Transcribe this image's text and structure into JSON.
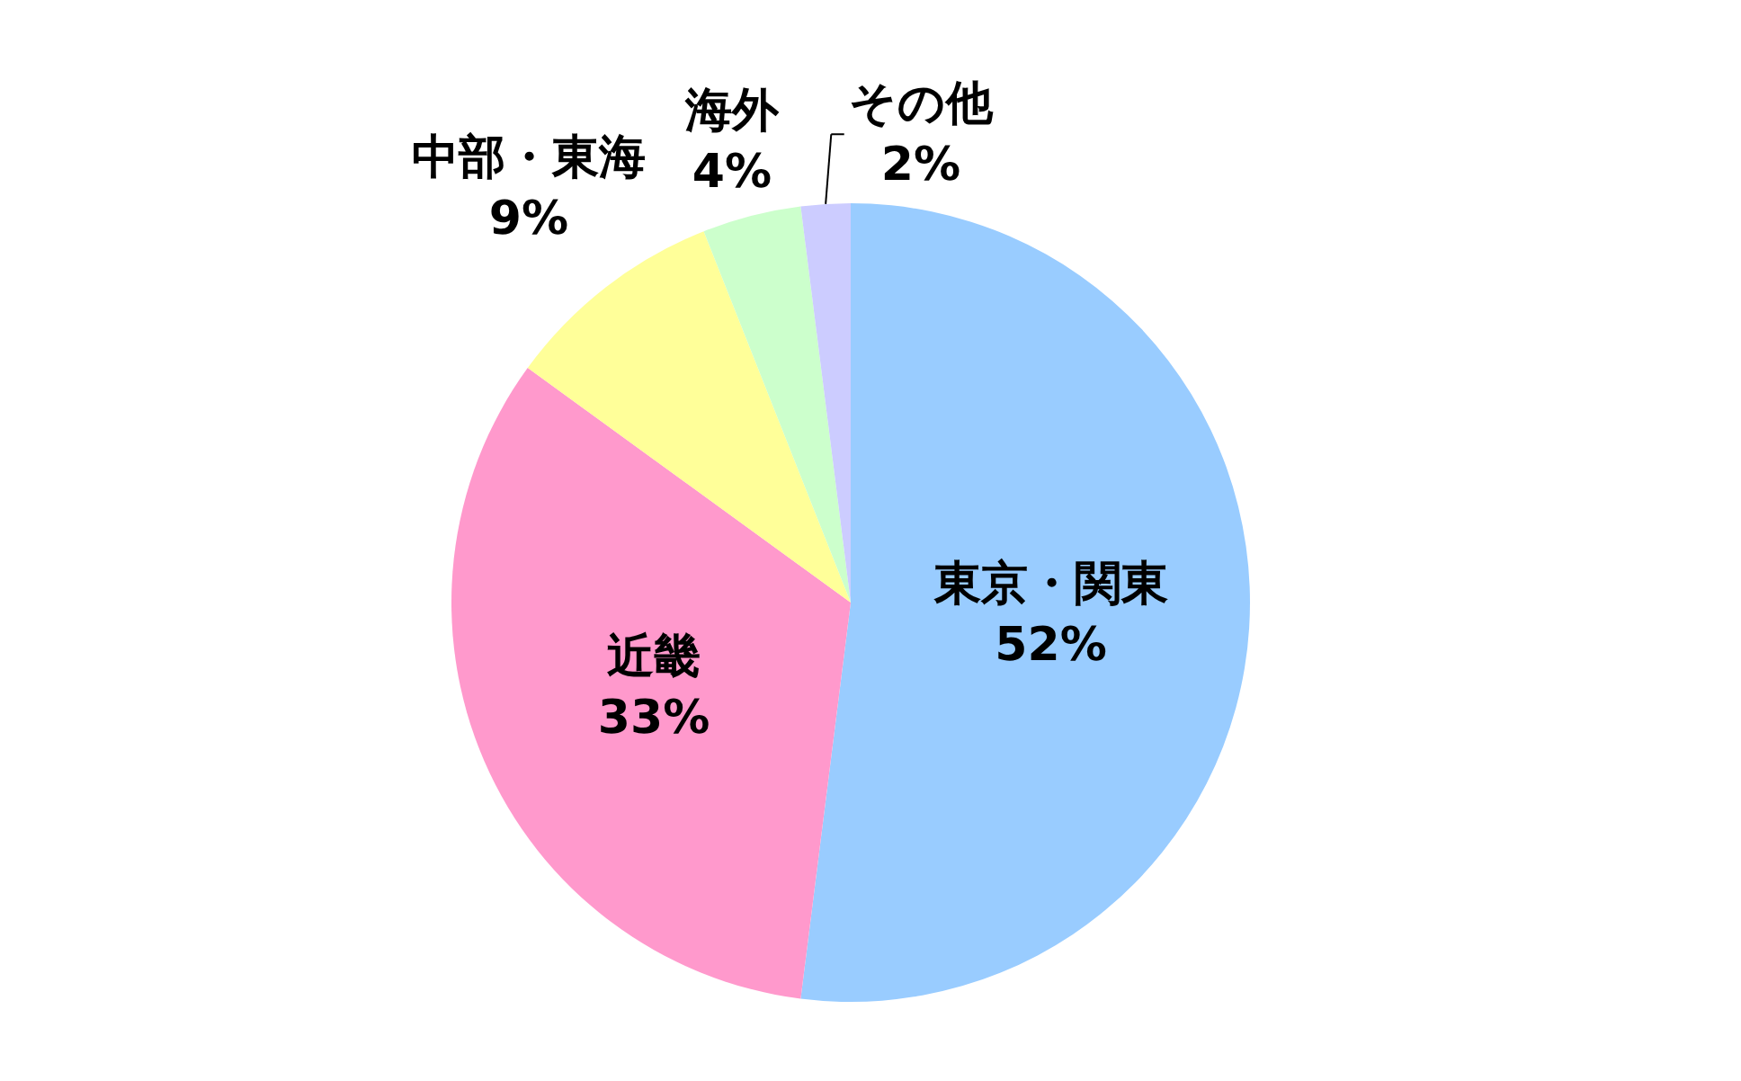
{
  "chart_data": {
    "type": "pie",
    "categories": [
      "東京・関東",
      "近畿",
      "中部・東海",
      "海外",
      "その他"
    ],
    "values": [
      52,
      33,
      9,
      4,
      2
    ],
    "value_labels": [
      "52%",
      "33%",
      "9%",
      "4%",
      "2%"
    ],
    "colors": [
      "#99ccff",
      "#ff99cc",
      "#ffff99",
      "#ccffcc",
      "#ccccff"
    ],
    "legend": false
  }
}
